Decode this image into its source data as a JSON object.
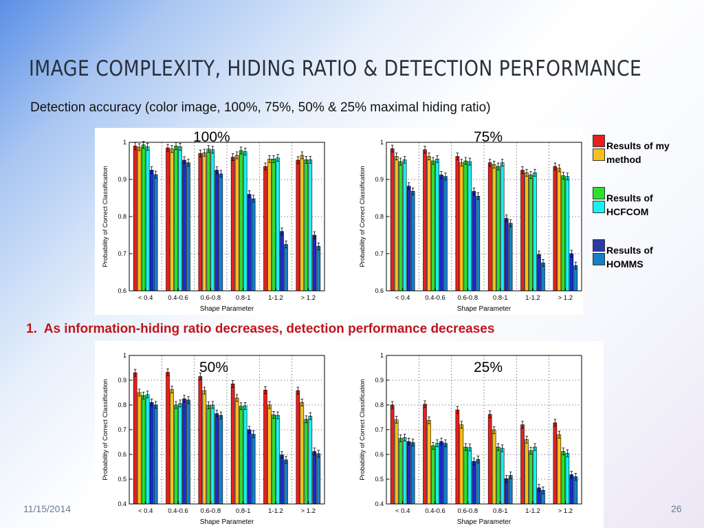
{
  "slide": {
    "title": "IMAGE COMPLEXITY, HIDING RATIO & DETECTION PERFORMANCE",
    "subtitle": "Detection accuracy (color image, 100%, 75%, 50% & 25% maximal hiding ratio)",
    "finding_number": "1.",
    "finding_text": "As information-hiding ratio decreases, detection performance decreases",
    "date": "11/15/2014",
    "page_number": "26"
  },
  "legend": {
    "items": [
      {
        "label_line1": "Results of my",
        "label_line2": "method",
        "color_a": "#e8201c",
        "color_b": "#f6c21a"
      },
      {
        "label_line1": "Results of",
        "label_line2": "HCFCOM",
        "color_a": "#2ee02e",
        "color_b": "#19f0f0"
      },
      {
        "label_line1": "Results of",
        "label_line2": "HOMMS",
        "color_a": "#2a3aa8",
        "color_b": "#1580c8"
      }
    ]
  },
  "bar_colors": [
    "#e8201c",
    "#f6c21a",
    "#2ee02e",
    "#19f0f0",
    "#1b2ad0",
    "#1580c8"
  ],
  "chart_data": [
    {
      "type": "bar",
      "label": "100%",
      "categories": [
        "< 0.4",
        "0.4-0.6",
        "0.6-0.8",
        "0.8-1",
        "1-1.2",
        "> 1.2"
      ],
      "xlabel": "Shape Parameter",
      "ylabel": "Probability of Correct Classification",
      "ylim": [
        0.6,
        1
      ],
      "yticks": [
        "0.6",
        "0.7",
        "0.8",
        "0.9",
        "1"
      ],
      "grid": true,
      "series": [
        {
          "values": [
            0.99,
            0.985,
            0.97,
            0.96,
            0.935,
            0.952
          ]
        },
        {
          "values": [
            0.987,
            0.982,
            0.972,
            0.965,
            0.955,
            0.965
          ]
        },
        {
          "values": [
            0.993,
            0.99,
            0.982,
            0.978,
            0.955,
            0.953
          ]
        },
        {
          "values": [
            0.988,
            0.988,
            0.98,
            0.975,
            0.958,
            0.953
          ]
        },
        {
          "values": [
            0.925,
            0.952,
            0.925,
            0.86,
            0.76,
            0.75
          ]
        },
        {
          "values": [
            0.913,
            0.945,
            0.915,
            0.848,
            0.725,
            0.72
          ]
        }
      ]
    },
    {
      "type": "bar",
      "label": "75%",
      "categories": [
        "< 0.4",
        "0.4-0.6",
        "0.6-0.8",
        "0.8-1",
        "1-1.2",
        "> 1.2"
      ],
      "xlabel": "Shape Parameter",
      "ylabel": "Probability of Correct Classification",
      "ylim": [
        0.6,
        1
      ],
      "yticks": [
        "0.6",
        "0.7",
        "0.8",
        "0.9",
        "1"
      ],
      "grid": true,
      "series": [
        {
          "values": [
            0.983,
            0.98,
            0.962,
            0.945,
            0.925,
            0.935
          ]
        },
        {
          "values": [
            0.962,
            0.962,
            0.945,
            0.94,
            0.918,
            0.93
          ]
        },
        {
          "values": [
            0.948,
            0.95,
            0.95,
            0.935,
            0.912,
            0.91
          ]
        },
        {
          "values": [
            0.953,
            0.955,
            0.948,
            0.945,
            0.918,
            0.908
          ]
        },
        {
          "values": [
            0.882,
            0.912,
            0.868,
            0.795,
            0.698,
            0.7
          ]
        },
        {
          "values": [
            0.868,
            0.908,
            0.855,
            0.782,
            0.675,
            0.668
          ]
        }
      ]
    },
    {
      "type": "bar",
      "label": "50%",
      "categories": [
        "< 0.4",
        "0.4-0.6",
        "0.6-0.8",
        "0.8-1",
        "1-1.2",
        "> 1.2"
      ],
      "xlabel": "Shape Parameter",
      "ylabel": "Probability of Correct Classification",
      "ylim": [
        0.4,
        1
      ],
      "yticks": [
        "0.4",
        "0.5",
        "0.6",
        "0.7",
        "0.8",
        "0.9",
        "1"
      ],
      "grid": true,
      "series": [
        {
          "values": [
            0.93,
            0.932,
            0.915,
            0.885,
            0.86,
            0.858
          ]
        },
        {
          "values": [
            0.85,
            0.862,
            0.858,
            0.828,
            0.8,
            0.81
          ]
        },
        {
          "values": [
            0.838,
            0.8,
            0.798,
            0.795,
            0.76,
            0.742
          ]
        },
        {
          "values": [
            0.842,
            0.806,
            0.8,
            0.796,
            0.758,
            0.755
          ]
        },
        {
          "values": [
            0.81,
            0.825,
            0.765,
            0.7,
            0.598,
            0.612
          ]
        },
        {
          "values": [
            0.8,
            0.82,
            0.758,
            0.682,
            0.578,
            0.603
          ]
        }
      ]
    },
    {
      "type": "bar",
      "label": "25%",
      "categories": [
        "< 0.4",
        "0.4-0.6",
        "0.6-0.8",
        "0.8-1",
        "1-1.2",
        "> 1.2"
      ],
      "xlabel": "Shape Parameter",
      "ylabel": "Probability of Correct Classification",
      "ylim": [
        0.4,
        1
      ],
      "yticks": [
        "0.4",
        "0.5",
        "0.6",
        "0.7",
        "0.8",
        "0.9",
        "1"
      ],
      "grid": true,
      "series": [
        {
          "values": [
            0.8,
            0.803,
            0.78,
            0.762,
            0.72,
            0.728
          ]
        },
        {
          "values": [
            0.74,
            0.738,
            0.72,
            0.698,
            0.66,
            0.68
          ]
        },
        {
          "values": [
            0.665,
            0.635,
            0.63,
            0.63,
            0.615,
            0.612
          ]
        },
        {
          "values": [
            0.668,
            0.645,
            0.628,
            0.625,
            0.63,
            0.605
          ]
        },
        {
          "values": [
            0.652,
            0.652,
            0.572,
            0.502,
            0.465,
            0.518
          ]
        },
        {
          "values": [
            0.648,
            0.645,
            0.58,
            0.515,
            0.455,
            0.51
          ]
        }
      ]
    }
  ]
}
